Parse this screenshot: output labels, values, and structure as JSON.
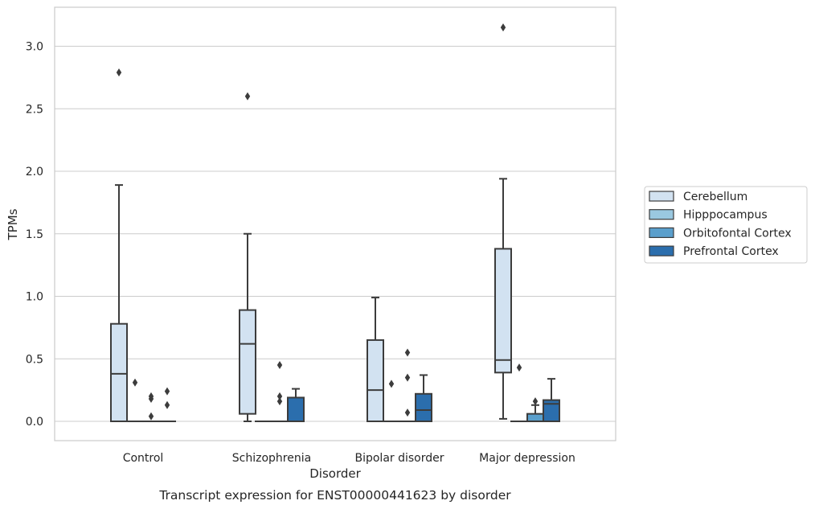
{
  "chart_data": {
    "type": "boxplot",
    "title": "Transcript expression for ENST00000441623 by disorder",
    "xlabel": "Disorder",
    "ylabel": "TPMs",
    "ylim": [
      -0.15,
      3.3
    ],
    "yticks": [
      0.0,
      0.5,
      1.0,
      1.5,
      2.0,
      2.5,
      3.0
    ],
    "ytick_labels": [
      "0.0",
      "0.5",
      "1.0",
      "1.5",
      "2.0",
      "2.5",
      "3.0"
    ],
    "grid": "horizontal",
    "legend": "right",
    "categories": [
      "Control",
      "Schizophrenia",
      "Bipolar disorder",
      "Major depression"
    ],
    "series": [
      {
        "name": "Cerebellum",
        "color": "#d2e2f1",
        "boxes": [
          {
            "q1": 0.0,
            "median": 0.38,
            "q3": 0.78,
            "whisker_low": 0.0,
            "whisker_high": 1.89,
            "outliers": [
              2.79
            ]
          },
          {
            "q1": 0.06,
            "median": 0.62,
            "q3": 0.89,
            "whisker_low": 0.0,
            "whisker_high": 1.5,
            "outliers": [
              2.6
            ]
          },
          {
            "q1": 0.0,
            "median": 0.25,
            "q3": 0.65,
            "whisker_low": 0.0,
            "whisker_high": 0.99,
            "outliers": []
          },
          {
            "q1": 0.39,
            "median": 0.49,
            "q3": 1.38,
            "whisker_low": 0.02,
            "whisker_high": 1.94,
            "outliers": [
              3.15
            ]
          }
        ]
      },
      {
        "name": "Hipppocampus",
        "color": "#9ac8e0",
        "boxes": [
          {
            "q1": 0.0,
            "median": 0.0,
            "q3": 0.0,
            "whisker_low": 0.0,
            "whisker_high": 0.0,
            "outliers": [
              0.31
            ]
          },
          {
            "q1": 0.0,
            "median": 0.0,
            "q3": 0.0,
            "whisker_low": 0.0,
            "whisker_high": 0.0,
            "outliers": []
          },
          {
            "q1": 0.0,
            "median": 0.0,
            "q3": 0.0,
            "whisker_low": 0.0,
            "whisker_high": 0.0,
            "outliers": [
              0.3
            ]
          },
          {
            "q1": 0.0,
            "median": 0.0,
            "q3": 0.0,
            "whisker_low": 0.0,
            "whisker_high": 0.0,
            "outliers": [
              0.43
            ]
          }
        ]
      },
      {
        "name": "Orbitofontal Cortex",
        "color": "#5a9fcc",
        "boxes": [
          {
            "q1": 0.0,
            "median": 0.0,
            "q3": 0.0,
            "whisker_low": 0.0,
            "whisker_high": 0.0,
            "outliers": [
              0.2,
              0.18,
              0.04
            ]
          },
          {
            "q1": 0.0,
            "median": 0.0,
            "q3": 0.0,
            "whisker_low": 0.0,
            "whisker_high": 0.0,
            "outliers": [
              0.45,
              0.2,
              0.16
            ]
          },
          {
            "q1": 0.0,
            "median": 0.0,
            "q3": 0.0,
            "whisker_low": 0.0,
            "whisker_high": 0.0,
            "outliers": [
              0.55,
              0.35,
              0.07
            ]
          },
          {
            "q1": 0.0,
            "median": 0.0,
            "q3": 0.06,
            "whisker_low": 0.0,
            "whisker_high": 0.13,
            "outliers": [
              0.16
            ]
          }
        ]
      },
      {
        "name": "Prefrontal Cortex",
        "color": "#2b6ead",
        "boxes": [
          {
            "q1": 0.0,
            "median": 0.0,
            "q3": 0.0,
            "whisker_low": 0.0,
            "whisker_high": 0.0,
            "outliers": [
              0.24,
              0.13
            ]
          },
          {
            "q1": 0.0,
            "median": 0.0,
            "q3": 0.19,
            "whisker_low": 0.0,
            "whisker_high": 0.26,
            "outliers": []
          },
          {
            "q1": 0.0,
            "median": 0.09,
            "q3": 0.22,
            "whisker_low": 0.0,
            "whisker_high": 0.37,
            "outliers": []
          },
          {
            "q1": 0.0,
            "median": 0.14,
            "q3": 0.17,
            "whisker_low": 0.0,
            "whisker_high": 0.34,
            "outliers": []
          }
        ]
      }
    ]
  }
}
